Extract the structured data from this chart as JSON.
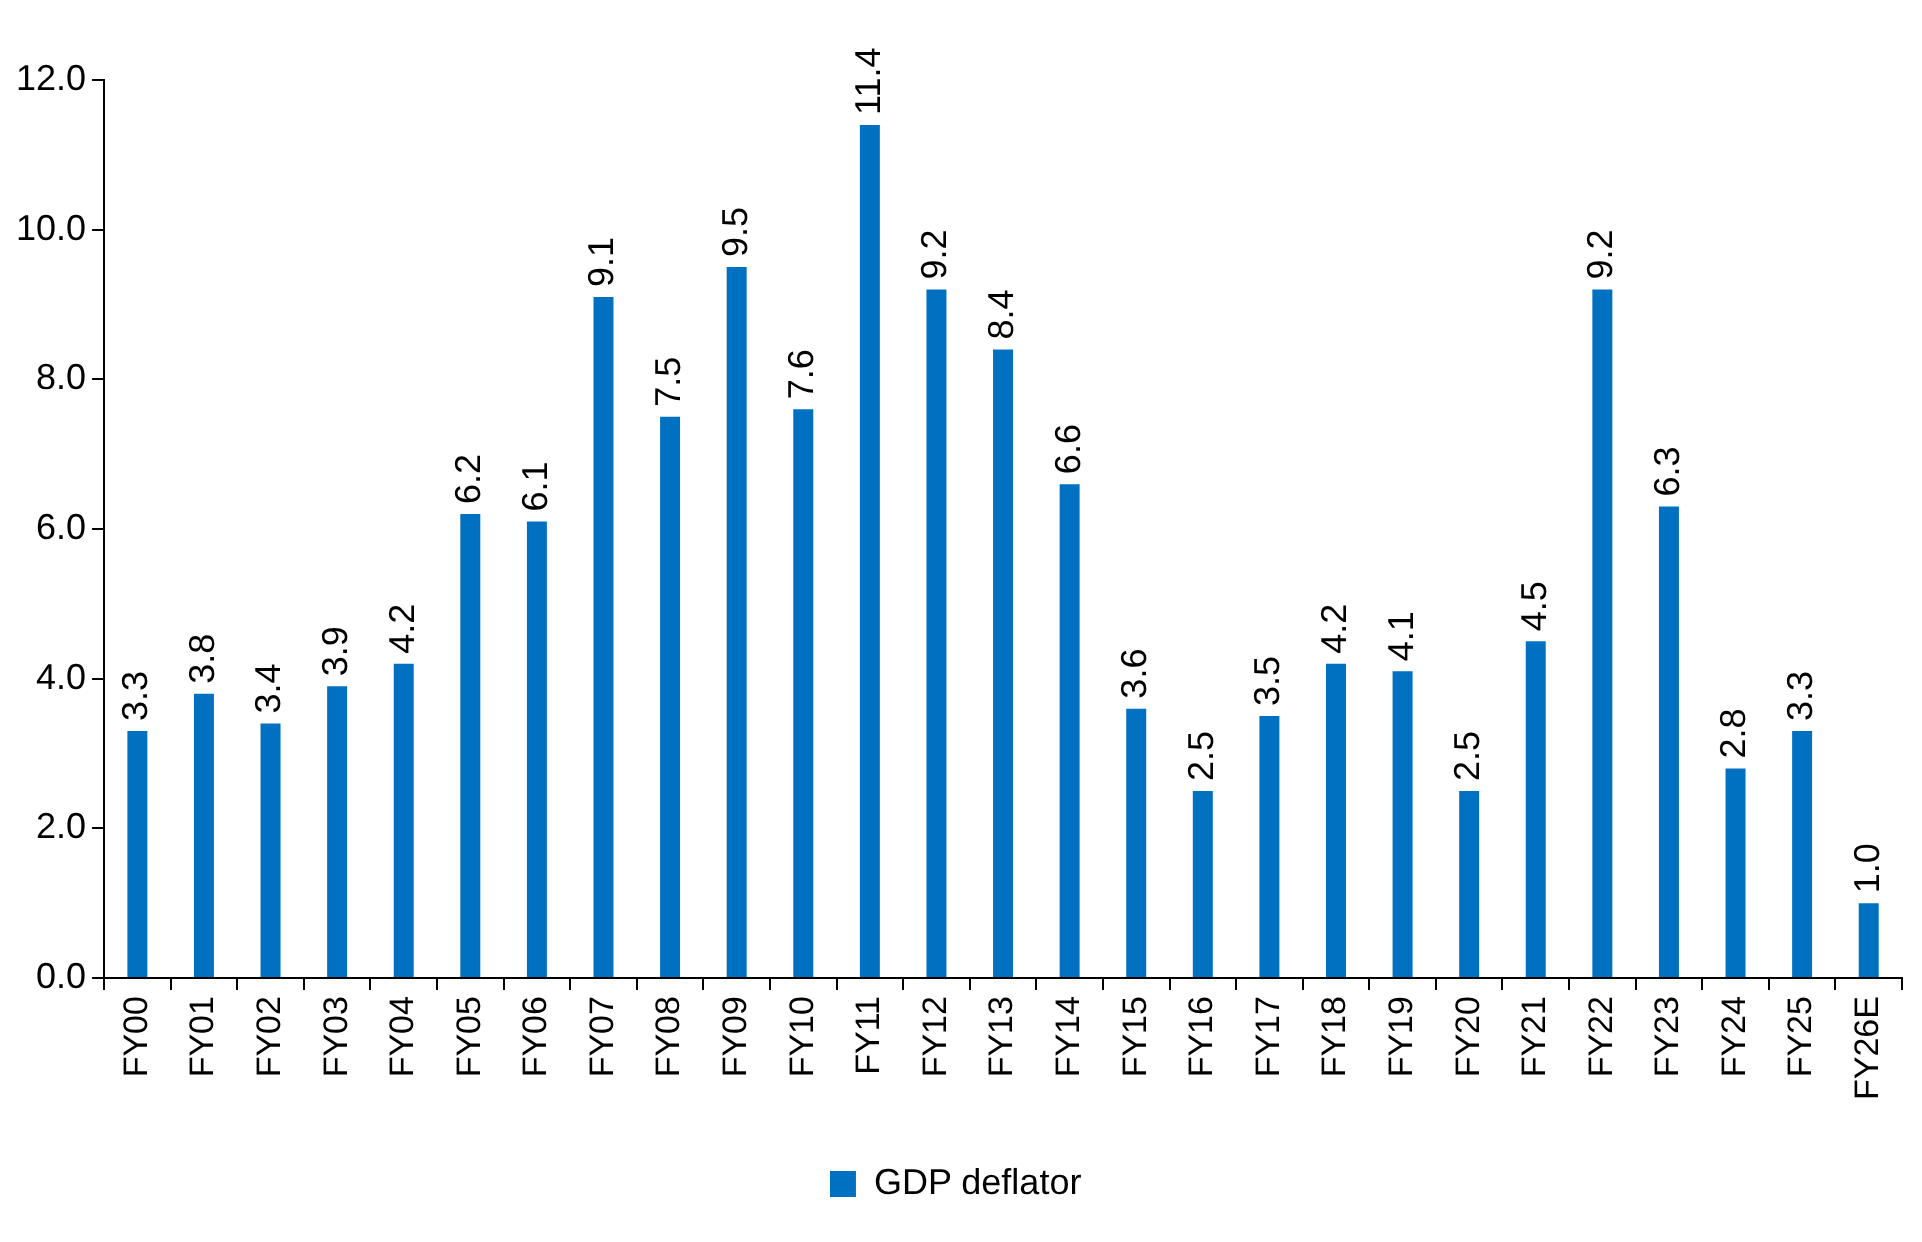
{
  "chart_data": {
    "type": "bar",
    "categories": [
      "FY00",
      "FY01",
      "FY02",
      "FY03",
      "FY04",
      "FY05",
      "FY06",
      "FY07",
      "FY08",
      "FY09",
      "FY10",
      "FY11",
      "FY12",
      "FY13",
      "FY14",
      "FY15",
      "FY16",
      "FY17",
      "FY18",
      "FY19",
      "FY20",
      "FY21",
      "FY22",
      "FY23",
      "FY24",
      "FY25",
      "FY26E"
    ],
    "series": [
      {
        "name": "GDP deflator",
        "color": "#0070c0",
        "values": [
          3.3,
          3.8,
          3.4,
          3.9,
          4.2,
          6.2,
          6.1,
          9.1,
          7.5,
          9.5,
          7.6,
          11.4,
          9.2,
          8.4,
          6.6,
          3.6,
          2.5,
          3.5,
          4.2,
          4.1,
          2.5,
          4.5,
          9.2,
          6.3,
          2.8,
          3.3,
          1.0
        ]
      }
    ],
    "ylim": [
      0,
      12
    ],
    "yticks": [
      {
        "value": 0,
        "label": "0.0"
      },
      {
        "value": 2,
        "label": "2.0"
      },
      {
        "value": 4,
        "label": "4.0"
      },
      {
        "value": 6,
        "label": "6.0"
      },
      {
        "value": 8,
        "label": "8.0"
      },
      {
        "value": 10,
        "label": "10.0"
      },
      {
        "value": 12,
        "label": "12.0"
      }
    ],
    "value_labels": [
      "3.3",
      "3.8",
      "3.4",
      "3.9",
      "4.2",
      "6.2",
      "6.1",
      "9.1",
      "7.5",
      "9.5",
      "7.6",
      "11.4",
      "9.2",
      "8.4",
      "6.6",
      "3.6",
      "2.5",
      "3.5",
      "4.2",
      "4.1",
      "2.5",
      "4.5",
      "9.2",
      "6.3",
      "2.8",
      "3.3",
      "1.0"
    ],
    "legend": "bottom",
    "grid": false
  }
}
